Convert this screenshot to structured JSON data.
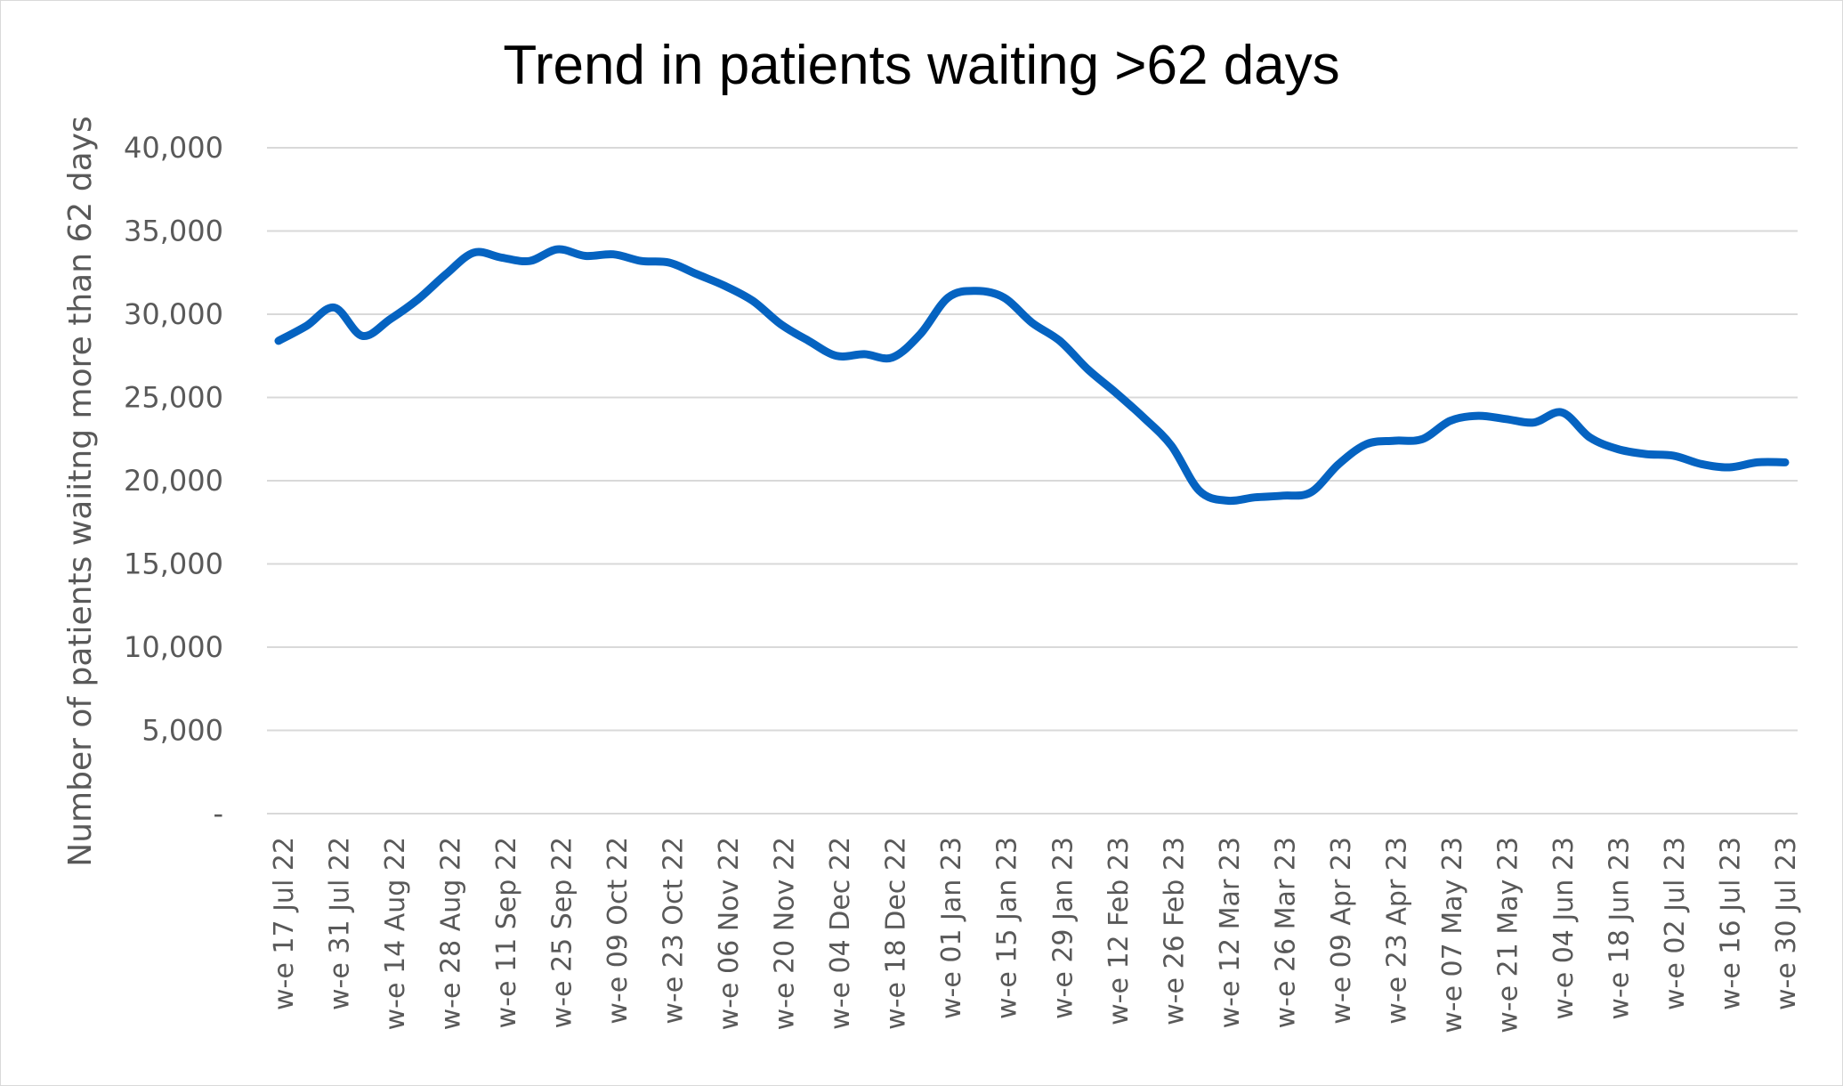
{
  "chart_data": {
    "type": "line",
    "title": "Trend in patients waiting >62 days",
    "xlabel": "",
    "ylabel": "Number of patients waiitng more than 62 days",
    "ylim": [
      0,
      40000
    ],
    "yticks": [
      0,
      5000,
      10000,
      15000,
      20000,
      25000,
      30000,
      35000,
      40000
    ],
    "ytick_labels": [
      "-",
      "5,000",
      "10,000",
      "15,000",
      "20,000",
      "25,000",
      "30,000",
      "35,000",
      "40,000"
    ],
    "x_tick_labels": [
      "w-e 17 Jul 22",
      "w-e 31 Jul 22",
      "w-e 14 Aug 22",
      "w-e 28 Aug 22",
      "w-e 11 Sep 22",
      "w-e 25 Sep 22",
      "w-e 09 Oct 22",
      "w-e 23 Oct 22",
      "w-e 06 Nov 22",
      "w-e 20 Nov 22",
      "w-e 04 Dec 22",
      "w-e 18 Dec 22",
      "w-e 01 Jan 23",
      "w-e 15 Jan 23",
      "w-e 29 Jan 23",
      "w-e 12 Feb 23",
      "w-e 26 Feb 23",
      "w-e 12 Mar 23",
      "w-e 26 Mar 23",
      "w-e 09 Apr 23",
      "w-e 23 Apr 23",
      "w-e 07 May 23",
      "w-e 21 May 23",
      "w-e 04 Jun 23",
      "w-e 18 Jun 23",
      "w-e 02 Jul 23",
      "w-e 16 Jul 23",
      "w-e 30 Jul 23"
    ],
    "grid": true,
    "legend": "none",
    "series": [
      {
        "color": "#0563C1",
        "values": [
          28400,
          29300,
          30400,
          28700,
          29700,
          30900,
          32400,
          33700,
          33400,
          33200,
          33900,
          33500,
          33600,
          33200,
          33100,
          32400,
          31700,
          30800,
          29400,
          28400,
          27500,
          27600,
          27400,
          28800,
          31000,
          31400,
          31000,
          29500,
          28400,
          26700,
          25300,
          23800,
          22100,
          19400,
          18800,
          19000,
          19100,
          19300,
          21000,
          22200,
          22400,
          22500,
          23600,
          23900,
          23700,
          23500,
          24100,
          22600,
          21900,
          21600,
          21500,
          21000,
          20800,
          21100,
          21100
        ]
      }
    ]
  }
}
